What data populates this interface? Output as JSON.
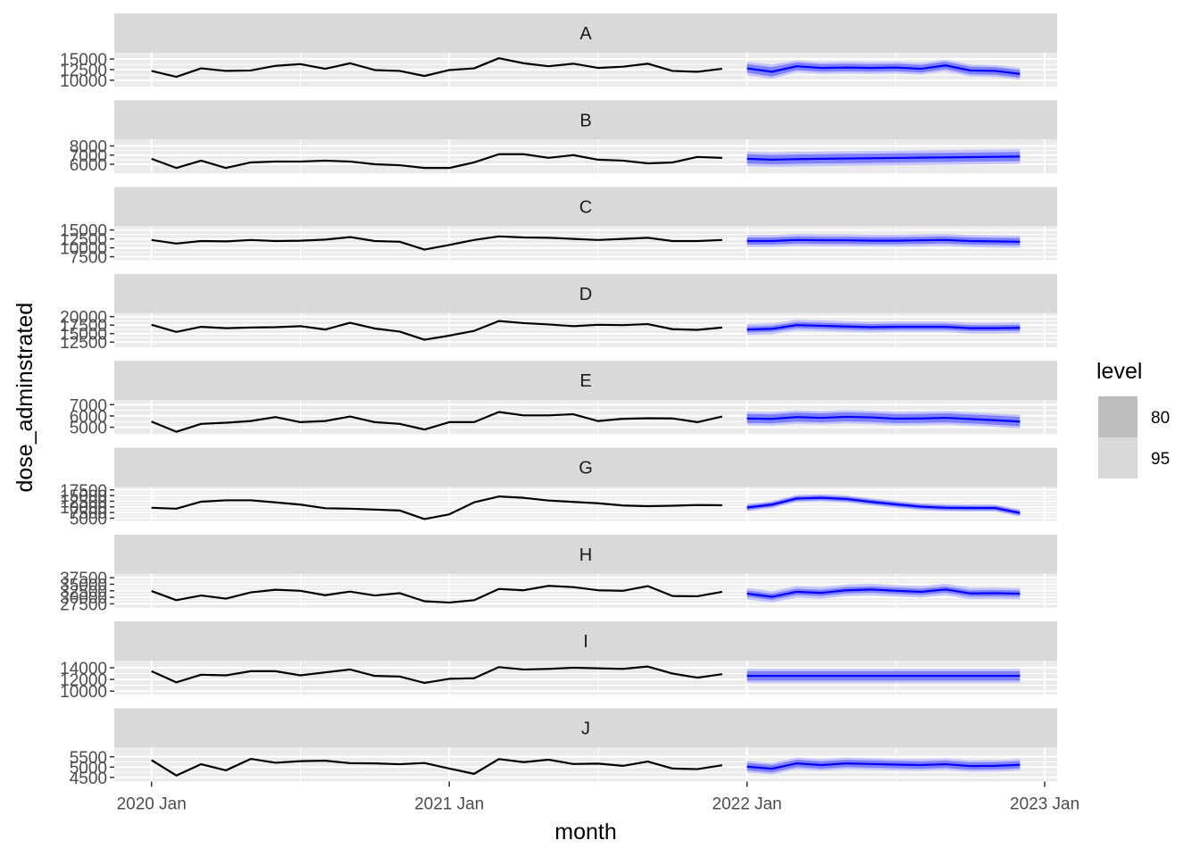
{
  "chart_data": {
    "type": "line",
    "xlabel": "month",
    "ylabel": "dose_adminstrated",
    "x_ticks": [
      "2020 Jan",
      "2021 Jan",
      "2022 Jan",
      "2023 Jan"
    ],
    "history_months": [
      "2020-01",
      "2020-02",
      "2020-03",
      "2020-04",
      "2020-05",
      "2020-06",
      "2020-07",
      "2020-08",
      "2020-09",
      "2020-10",
      "2020-11",
      "2020-12",
      "2021-01",
      "2021-02",
      "2021-03",
      "2021-04",
      "2021-05",
      "2021-06",
      "2021-07",
      "2021-08",
      "2021-09",
      "2021-10",
      "2021-11",
      "2021-12"
    ],
    "forecast_months": [
      "2022-01",
      "2022-02",
      "2022-03",
      "2022-04",
      "2022-05",
      "2022-06",
      "2022-07",
      "2022-08",
      "2022-09",
      "2022-10",
      "2022-11",
      "2022-12"
    ],
    "legend": {
      "title": "level",
      "items": [
        "80",
        "95"
      ],
      "colors": [
        "#bebebe",
        "#d9d9d9"
      ]
    },
    "colors": {
      "history_line": "#000000",
      "forecast_line": "#0000ff",
      "band80": "#8080ff",
      "band95": "#c4c4ff",
      "strip": "#d9d9d9",
      "panel": "#ebebeb",
      "grid": "#ffffff"
    },
    "panels": [
      {
        "label": "A",
        "ticks": [
          "15000",
          "12500",
          "10000"
        ],
        "tick_values": [
          15000,
          12500,
          10000
        ],
        "ylim": [
          8500,
          16500
        ],
        "history": [
          12200,
          10800,
          12800,
          12200,
          12300,
          13400,
          13800,
          12700,
          14000,
          12400,
          12200,
          11000,
          12400,
          12800,
          15200,
          14000,
          13300,
          13900,
          12900,
          13200,
          13900,
          12200,
          12000,
          12700
        ],
        "forecast": [
          12800,
          12000,
          13300,
          12900,
          13000,
          12900,
          13000,
          12700,
          13500,
          12300,
          12200,
          11500
        ],
        "lo80": [
          11800,
          10900,
          12400,
          12000,
          12100,
          12000,
          12100,
          11800,
          12600,
          11400,
          11300,
          10600
        ],
        "hi80": [
          13800,
          13100,
          14200,
          13800,
          13900,
          13800,
          13900,
          13600,
          14400,
          13200,
          13100,
          12400
        ],
        "lo95": [
          11200,
          10300,
          11900,
          11500,
          11600,
          11500,
          11600,
          11300,
          12100,
          10900,
          10800,
          10100
        ],
        "hi95": [
          14400,
          13700,
          14700,
          14300,
          14400,
          14300,
          14400,
          14100,
          14900,
          13700,
          13600,
          12900
        ]
      },
      {
        "label": "B",
        "ticks": [
          "8000",
          "7000",
          "6000"
        ],
        "tick_values": [
          8000,
          7000,
          6000
        ],
        "ylim": [
          5000,
          8700
        ],
        "history": [
          6600,
          5600,
          6400,
          5600,
          6200,
          6300,
          6300,
          6400,
          6300,
          6000,
          5900,
          5600,
          5600,
          6200,
          7100,
          7100,
          6700,
          7000,
          6500,
          6400,
          6100,
          6200,
          6800,
          6700
        ],
        "forecast": [
          6600,
          6500,
          6560,
          6600,
          6630,
          6660,
          6690,
          6720,
          6750,
          6780,
          6810,
          6840
        ],
        "lo80": [
          6100,
          6000,
          6060,
          6100,
          6130,
          6160,
          6190,
          6220,
          6250,
          6280,
          6310,
          6340
        ],
        "hi80": [
          7100,
          7000,
          7060,
          7100,
          7130,
          7160,
          7190,
          7220,
          7250,
          7280,
          7310,
          7340
        ],
        "lo95": [
          5800,
          5700,
          5760,
          5800,
          5830,
          5860,
          5890,
          5920,
          5950,
          5980,
          6010,
          6040
        ],
        "hi95": [
          7400,
          7300,
          7360,
          7400,
          7430,
          7460,
          7490,
          7520,
          7550,
          7580,
          7610,
          7640
        ]
      },
      {
        "label": "C",
        "ticks": [
          "15000",
          "12500",
          "10000",
          "7500"
        ],
        "tick_values": [
          15000,
          12500,
          10000,
          7500
        ],
        "ylim": [
          6500,
          16000
        ],
        "history": [
          12200,
          11200,
          11900,
          11800,
          12200,
          11900,
          12000,
          12300,
          13000,
          11900,
          11700,
          9500,
          10800,
          12200,
          13200,
          12900,
          12800,
          12500,
          12200,
          12500,
          12800,
          11900,
          11900,
          12200
        ],
        "forecast": [
          11900,
          11900,
          12200,
          12100,
          12100,
          12000,
          12000,
          12100,
          12200,
          11900,
          11800,
          11700
        ],
        "lo80": [
          10900,
          10900,
          11200,
          11100,
          11100,
          11000,
          11000,
          11100,
          11200,
          10900,
          10800,
          10700
        ],
        "hi80": [
          12900,
          12900,
          13200,
          13100,
          13100,
          13000,
          13000,
          13100,
          13200,
          12900,
          12800,
          12700
        ],
        "lo95": [
          10200,
          10200,
          10500,
          10400,
          10400,
          10300,
          10300,
          10400,
          10500,
          10200,
          10100,
          10000
        ],
        "hi95": [
          13600,
          13600,
          13900,
          13800,
          13800,
          13700,
          13700,
          13800,
          13900,
          13600,
          13500,
          13400
        ]
      },
      {
        "label": "D",
        "ticks": [
          "20000",
          "17500",
          "15000",
          "12500"
        ],
        "tick_values": [
          20000,
          17500,
          15000,
          12500
        ],
        "ylim": [
          11000,
          21000
        ],
        "history": [
          17600,
          15500,
          17000,
          16600,
          16800,
          16900,
          17200,
          16200,
          18200,
          16500,
          15600,
          13200,
          14400,
          15800,
          18700,
          18100,
          17700,
          17200,
          17600,
          17500,
          17800,
          16300,
          16100,
          16800
        ],
        "forecast": [
          16200,
          16400,
          17500,
          17300,
          17100,
          16900,
          17000,
          17000,
          17000,
          16600,
          16600,
          16700
        ],
        "lo80": [
          15300,
          15500,
          16600,
          16400,
          16200,
          16000,
          16100,
          16100,
          16100,
          15700,
          15700,
          15800
        ],
        "hi80": [
          17100,
          17300,
          18400,
          18200,
          18000,
          17800,
          17900,
          17900,
          17900,
          17500,
          17500,
          17600
        ],
        "lo95": [
          14600,
          14800,
          15900,
          15700,
          15500,
          15300,
          15400,
          15400,
          15400,
          15000,
          15000,
          15100
        ],
        "hi95": [
          17800,
          18000,
          19100,
          18900,
          18700,
          18500,
          18600,
          18600,
          18600,
          18200,
          18200,
          18300
        ]
      },
      {
        "label": "E",
        "ticks": [
          "7000",
          "6000",
          "5000"
        ],
        "tick_values": [
          7000,
          6000,
          5000
        ],
        "ylim": [
          4400,
          7400
        ],
        "history": [
          5500,
          4600,
          5300,
          5400,
          5550,
          5900,
          5450,
          5550,
          5950,
          5450,
          5300,
          4800,
          5450,
          5450,
          6350,
          6050,
          6050,
          6150,
          5550,
          5750,
          5800,
          5780,
          5450,
          5950
        ],
        "forecast": [
          5780,
          5740,
          5900,
          5830,
          5920,
          5870,
          5760,
          5780,
          5830,
          5730,
          5620,
          5500
        ],
        "lo80": [
          5380,
          5340,
          5500,
          5430,
          5520,
          5470,
          5360,
          5380,
          5430,
          5330,
          5220,
          5100
        ],
        "hi80": [
          6180,
          6140,
          6300,
          6230,
          6320,
          6270,
          6160,
          6180,
          6230,
          6130,
          6020,
          5900
        ],
        "lo95": [
          5180,
          5140,
          5300,
          5230,
          5320,
          5270,
          5160,
          5180,
          5230,
          5130,
          5020,
          4900
        ],
        "hi95": [
          6380,
          6340,
          6500,
          6430,
          6520,
          6470,
          6360,
          6380,
          6430,
          6330,
          6220,
          6100
        ]
      },
      {
        "label": "G",
        "ticks": [
          "17500",
          "15000",
          "12500",
          "10000",
          "7500",
          "5000"
        ],
        "tick_values": [
          17500,
          15000,
          12500,
          10000,
          7500,
          5000
        ],
        "ylim": [
          3800,
          18800
        ],
        "history": [
          9600,
          9200,
          12300,
          12900,
          12900,
          12000,
          11000,
          9400,
          9200,
          8800,
          8400,
          4600,
          6700,
          12000,
          14600,
          14000,
          12800,
          12200,
          11600,
          10600,
          10300,
          10500,
          10800,
          10700
        ],
        "forecast": [
          9700,
          11000,
          13700,
          14000,
          13500,
          12200,
          11100,
          10100,
          9600,
          9500,
          9500,
          7300
        ],
        "lo80": [
          8700,
          10000,
          12700,
          13000,
          12500,
          11200,
          10100,
          9100,
          8600,
          8500,
          8500,
          6300
        ],
        "hi80": [
          10700,
          12000,
          14700,
          15000,
          14500,
          13200,
          12100,
          11100,
          10600,
          10500,
          10500,
          8300
        ],
        "lo95": [
          8100,
          9400,
          12100,
          12400,
          11900,
          10600,
          9500,
          8500,
          8000,
          7900,
          7900,
          5700
        ],
        "hi95": [
          11300,
          12600,
          15300,
          15600,
          15100,
          13800,
          12700,
          11700,
          11200,
          11100,
          11100,
          8900
        ]
      },
      {
        "label": "H",
        "ticks": [
          "37500",
          "35000",
          "32500",
          "30000",
          "27500"
        ],
        "tick_values": [
          37500,
          35000,
          32500,
          30000,
          27500
        ],
        "ylim": [
          26000,
          39000
        ],
        "history": [
          32400,
          28900,
          30700,
          29500,
          31900,
          32900,
          32500,
          30800,
          32200,
          30700,
          31600,
          28500,
          28000,
          28900,
          33200,
          32700,
          34400,
          33900,
          32700,
          32500,
          34300,
          30500,
          30400,
          32100
        ],
        "forecast": [
          31400,
          30200,
          32100,
          31700,
          32700,
          33000,
          32500,
          32100,
          33000,
          31500,
          31600,
          31400
        ],
        "lo80": [
          30200,
          29000,
          30900,
          30500,
          31500,
          31800,
          31300,
          30900,
          31800,
          30300,
          30400,
          30200
        ],
        "hi80": [
          32600,
          31400,
          33300,
          32900,
          33900,
          34200,
          33700,
          33300,
          34200,
          32700,
          32800,
          32600
        ],
        "lo95": [
          29200,
          28000,
          29900,
          29500,
          30500,
          30800,
          30300,
          29900,
          30800,
          29300,
          29400,
          29200
        ],
        "hi95": [
          33600,
          32400,
          34300,
          33900,
          34900,
          35200,
          34700,
          34300,
          35200,
          33700,
          33800,
          33600
        ]
      },
      {
        "label": "I",
        "ticks": [
          "14000",
          "12000",
          "10000"
        ],
        "tick_values": [
          14000,
          12000,
          10000
        ],
        "ylim": [
          9400,
          15200
        ],
        "history": [
          13400,
          11500,
          12800,
          12700,
          13400,
          13400,
          12700,
          13200,
          13700,
          12600,
          12500,
          11400,
          12100,
          12200,
          14100,
          13700,
          13800,
          14000,
          13900,
          13800,
          14200,
          13000,
          12300,
          12900
        ],
        "forecast": [
          12600,
          12600,
          12600,
          12600,
          12600,
          12600,
          12600,
          12600,
          12600,
          12600,
          12600,
          12600
        ],
        "lo80": [
          11800,
          11800,
          11800,
          11800,
          11800,
          11800,
          11800,
          11800,
          11800,
          11800,
          11800,
          11800
        ],
        "hi80": [
          13400,
          13400,
          13400,
          13400,
          13400,
          13400,
          13400,
          13400,
          13400,
          13400,
          13400,
          13400
        ],
        "lo95": [
          11400,
          11400,
          11400,
          11400,
          11400,
          11400,
          11400,
          11400,
          11400,
          11400,
          11400,
          11400
        ],
        "hi95": [
          13800,
          13800,
          13800,
          13800,
          13800,
          13800,
          13800,
          13800,
          13800,
          13800,
          13800,
          13800
        ]
      },
      {
        "label": "J",
        "ticks": [
          "5500",
          "5000",
          "4500"
        ],
        "tick_values": [
          5500,
          5000,
          4500
        ],
        "ylim": [
          4300,
          5950
        ],
        "history": [
          5340,
          4590,
          5140,
          4840,
          5400,
          5210,
          5290,
          5310,
          5190,
          5180,
          5140,
          5200,
          4930,
          4670,
          5390,
          5240,
          5360,
          5150,
          5170,
          5060,
          5270,
          4930,
          4900,
          5090
        ],
        "forecast": [
          5020,
          4920,
          5180,
          5100,
          5180,
          5150,
          5120,
          5100,
          5140,
          5050,
          5060,
          5110
        ],
        "lo80": [
          4840,
          4740,
          5000,
          4920,
          5000,
          4970,
          4940,
          4920,
          4960,
          4870,
          4880,
          4930
        ],
        "hi80": [
          5200,
          5100,
          5360,
          5280,
          5360,
          5330,
          5300,
          5280,
          5320,
          5230,
          5240,
          5290
        ],
        "lo95": [
          4740,
          4640,
          4900,
          4820,
          4900,
          4870,
          4840,
          4820,
          4860,
          4770,
          4780,
          4830
        ],
        "hi95": [
          5300,
          5200,
          5460,
          5380,
          5460,
          5430,
          5400,
          5380,
          5420,
          5330,
          5340,
          5390
        ]
      }
    ]
  }
}
